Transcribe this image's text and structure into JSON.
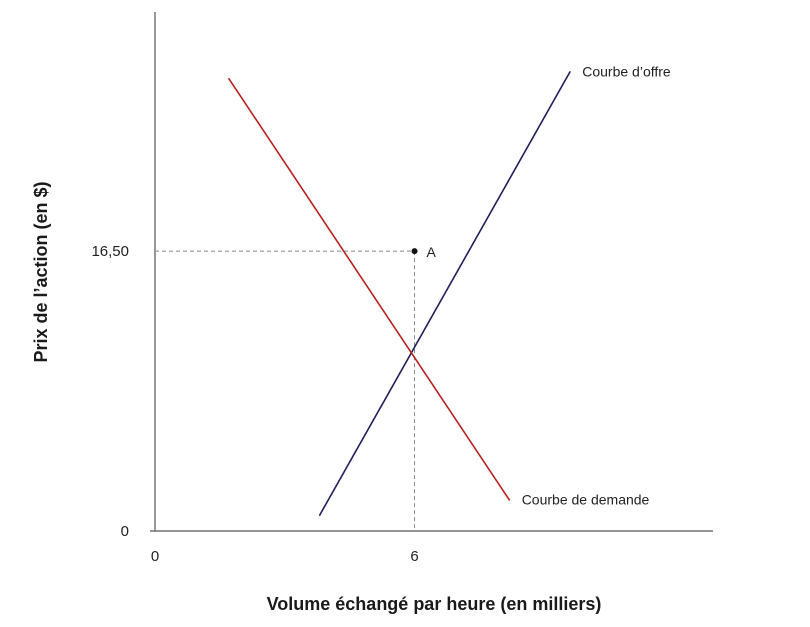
{
  "chart_data": {
    "type": "line",
    "xlabel": "Volume échangé par heure (en milliers)",
    "ylabel": "Prix de l’action (en $)",
    "xlim": [
      0,
      12.9
    ],
    "ylim": [
      0,
      30.6
    ],
    "x_ticks": [
      {
        "value": 0,
        "label": "0"
      },
      {
        "value": 6,
        "label": "6"
      }
    ],
    "y_ticks": [
      {
        "value": 0,
        "label": "0"
      },
      {
        "value": 16.5,
        "label": "16,50"
      }
    ],
    "series": [
      {
        "name": "Courbe d’offre",
        "color": "#1f1f5c",
        "points": [
          [
            3.8,
            0.9
          ],
          [
            9.6,
            27.1
          ]
        ]
      },
      {
        "name": "Courbe de demande",
        "color": "#b5221d",
        "points": [
          [
            1.7,
            26.7
          ],
          [
            8.2,
            1.8
          ]
        ]
      }
    ],
    "annotations": [
      {
        "label": "A",
        "x": 6,
        "y": 16.5,
        "dashed_guides": true
      }
    ],
    "grid": false
  }
}
